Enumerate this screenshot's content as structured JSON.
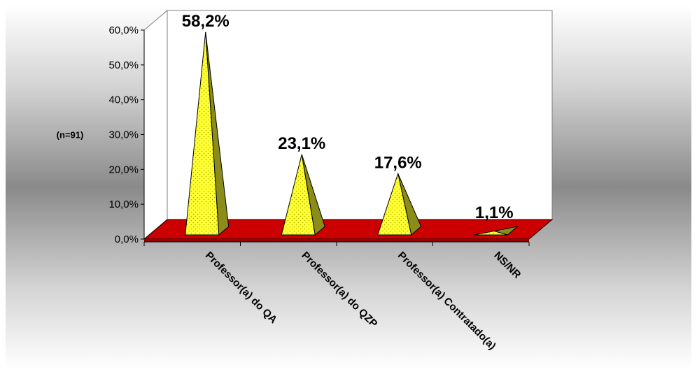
{
  "chart_data": {
    "type": "bar",
    "style": "3d-pyramid",
    "categories": [
      "Professor(a) do QA",
      "Professor(a) do QZP",
      "Professor(a) Contratado(a)",
      "NS/NR"
    ],
    "values": [
      58.2,
      23.1,
      17.6,
      1.1
    ],
    "data_labels": [
      "58,2%",
      "23,1%",
      "17,6%",
      "1,1%"
    ],
    "ylabel": "(n=91)",
    "ylim": [
      0,
      60
    ],
    "yticks": [
      "0,0%",
      "10,0%",
      "20,0%",
      "30,0%",
      "40,0%",
      "50,0%",
      "60,0%"
    ],
    "grid": false,
    "legend": "none",
    "colors": {
      "bar_front": "#ffff33",
      "bar_side": "#8c8c1a",
      "floor": "#cc0000",
      "floor_edge": "#990000",
      "wall": "#ffffff"
    }
  }
}
